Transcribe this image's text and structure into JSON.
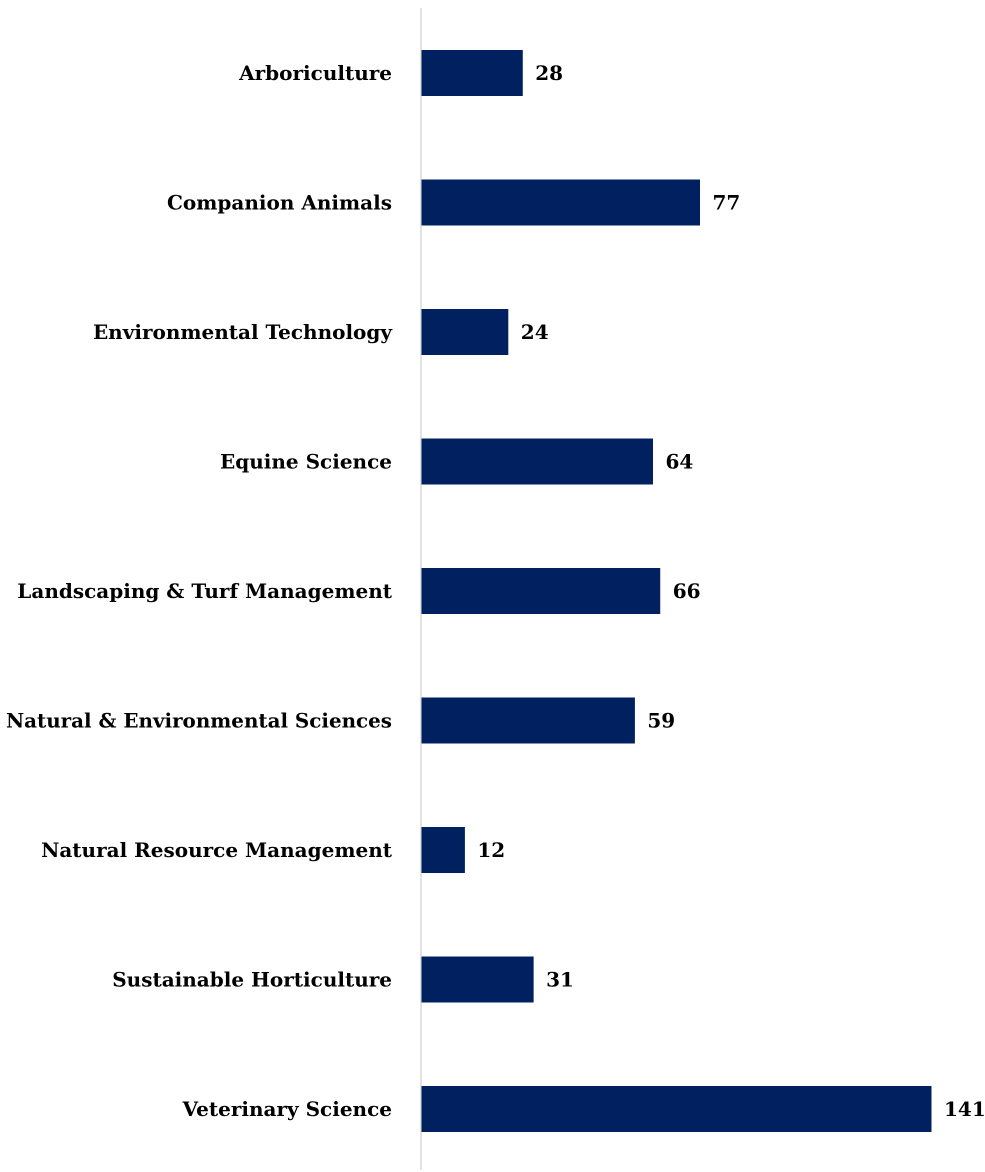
{
  "chart_data": {
    "type": "bar",
    "orientation": "horizontal",
    "categories": [
      "Arboriculture",
      "Companion Animals",
      "Environmental Technology",
      "Equine Science",
      "Landscaping & Turf Management",
      "Natural & Environmental Sciences",
      "Natural Resource Management",
      "Sustainable Horticulture",
      "Veterinary Science"
    ],
    "values": [
      28,
      77,
      24,
      64,
      66,
      59,
      12,
      31,
      141
    ],
    "data_labels": [
      "28",
      "77",
      "24",
      "64",
      "66",
      "59",
      "12",
      "31",
      "141"
    ],
    "title": "",
    "xlabel": "",
    "ylabel": "",
    "xlim": [
      0,
      141
    ],
    "grid": false,
    "legend": "none",
    "colors": {
      "bar": "#002060",
      "axis": "#d9d9d9",
      "text": "#000000"
    }
  }
}
